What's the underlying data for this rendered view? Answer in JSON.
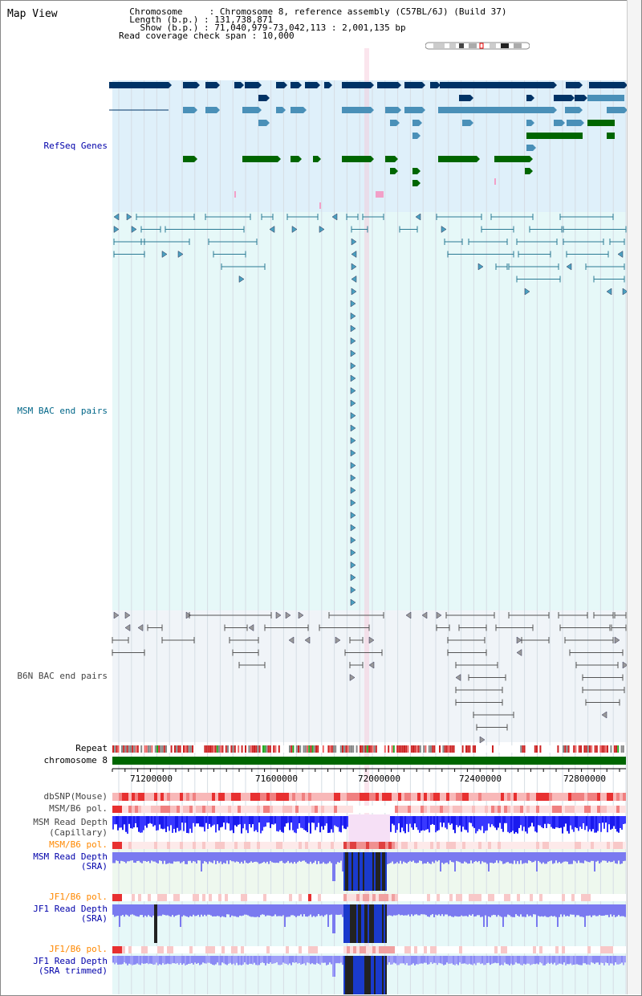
{
  "header": {
    "title": "Map View",
    "chromosome_label": "Chromosome",
    "chromosome_value": "Chromosome 8, reference assembly (C57BL/6J) (Build 37)",
    "length_label": "Length (b.p.)",
    "length_value": "131,738,871",
    "show_label": "Show (b.p.)",
    "show_value": "71,040,979-73,042,113 : 2,001,135 bp",
    "coverage_label": "Read coverage check span",
    "coverage_value": "10,000"
  },
  "tracks": {
    "refseq": "RefSeq Genes",
    "msm_bac": "MSM BAC end pairs",
    "b6n_bac": "B6N BAC end pairs",
    "repeat": "Repeat",
    "chromosome": "chromosome 8",
    "dbsnp": "dbSNP(Mouse)",
    "msm_b6_pol_1": "MSM/B6 pol.",
    "msm_read_depth_cap_1": "MSM Read Depth",
    "msm_read_depth_cap_2": "(Capillary)",
    "msm_b6_pol_2": "MSM/B6 pol.",
    "msm_read_depth_sra_1": "MSM Read Depth",
    "msm_read_depth_sra_2": "(SRA)",
    "jf1_b6_pol_1": "JF1/B6 pol.",
    "jf1_read_depth_sra_1": "JF1 Read Depth",
    "jf1_read_depth_sra_2": "(SRA)",
    "jf1_b6_pol_2": "JF1/B6 pol.",
    "jf1_read_depth_trim_1": "JF1 Read Depth",
    "jf1_read_depth_trim_2": "(SRA trimmed)"
  },
  "axis": {
    "ticks": [
      "71200000",
      "71600000",
      "72000000",
      "72400000",
      "72800000"
    ]
  },
  "colors": {
    "refseq_label": "#0000aa",
    "msm_label": "#006688",
    "b6n_label": "#444444",
    "pol_label": "#ff8800",
    "depth_label": "#0000aa",
    "gene_dark": "#003366",
    "gene_mid": "#4a90b8",
    "gene_green": "#006600",
    "depth_blue": "#3333ff",
    "chrom_green": "#006600"
  }
}
